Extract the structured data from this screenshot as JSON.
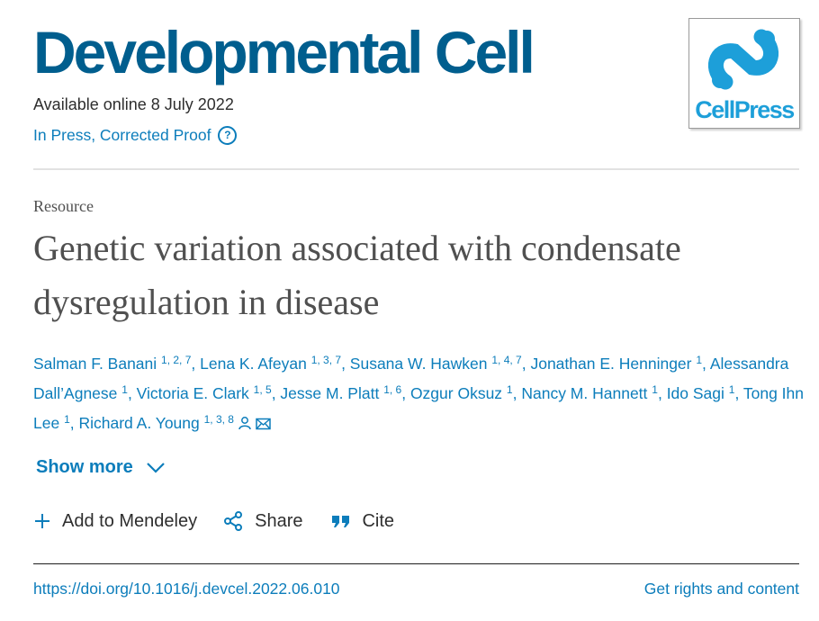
{
  "journal": {
    "title": "Developmental Cell",
    "logo_text": "CellPress",
    "brand_color": "#005e8e",
    "logo_color": "#1d9fd9"
  },
  "availability": "Available online 8 July 2022",
  "status": {
    "label": "In Press, Corrected Proof",
    "help_icon": "question-circle-icon"
  },
  "article": {
    "type": "Resource",
    "title": "Genetic variation associated with condensate dysregulation in disease"
  },
  "authors": [
    {
      "name": "Salman F. Banani",
      "aff": "1, 2, 7"
    },
    {
      "name": "Lena K. Afeyan",
      "aff": "1, 3, 7"
    },
    {
      "name": "Susana W. Hawken",
      "aff": "1, 4, 7"
    },
    {
      "name": "Jonathan E. Henninger",
      "aff": "1"
    },
    {
      "name": "Alessandra Dall’Agnese",
      "aff": "1"
    },
    {
      "name": "Victoria E. Clark",
      "aff": "1, 5"
    },
    {
      "name": "Jesse M. Platt",
      "aff": "1, 6"
    },
    {
      "name": "Ozgur Oksuz",
      "aff": "1"
    },
    {
      "name": "Nancy M. Hannett",
      "aff": "1"
    },
    {
      "name": "Ido Sagi",
      "aff": "1"
    },
    {
      "name": "Tong Ihn Lee",
      "aff": "1"
    },
    {
      "name": "Richard A. Young",
      "aff": "1, 3, 8"
    }
  ],
  "author_separator": ", ",
  "show_more": "Show more",
  "actions": {
    "mendeley": "Add to Mendeley",
    "share": "Share",
    "cite": "Cite"
  },
  "doi": "https://doi.org/10.1016/j.devcel.2022.06.010",
  "rights": "Get rights and content",
  "link_color": "#0c7dbb"
}
